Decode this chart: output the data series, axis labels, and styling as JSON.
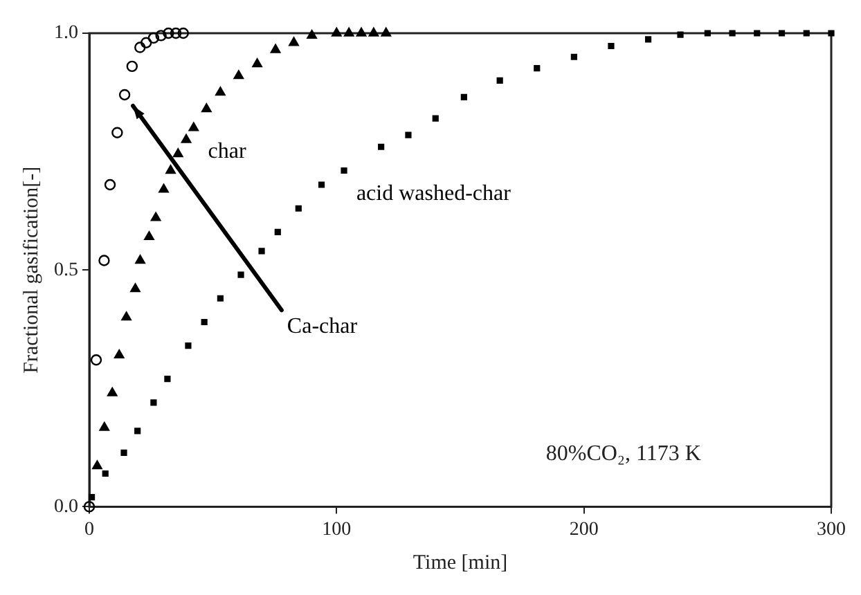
{
  "chart_data": {
    "type": "scatter",
    "xlabel": "Time [min]",
    "ylabel": "Fractional gasification[-]",
    "xlim": [
      0,
      300
    ],
    "xticks": [
      0,
      100,
      200,
      300
    ],
    "ylim": [
      0,
      1
    ],
    "yticks": [
      {
        "value": 0,
        "label": "0.0"
      },
      {
        "value": 0.5,
        "label": "0.5"
      },
      {
        "value": 1,
        "label": "1.0"
      }
    ],
    "grid": false,
    "legend": false,
    "annotations": [
      "80%CO₂, 1173 K"
    ],
    "series": [
      {
        "name": "Ca-char",
        "color": "#000000",
        "marker": "circle",
        "x": [
          0,
          2.8,
          6,
          8.4,
          11.3,
          14.3,
          17.3,
          20.5,
          23,
          26,
          29,
          32,
          35,
          38
        ],
        "values": [
          0,
          0.31,
          0.52,
          0.68,
          0.79,
          0.87,
          0.93,
          0.97,
          0.98,
          0.99,
          0.995,
          1,
          1,
          1
        ]
      },
      {
        "name": "char",
        "color": "#000000",
        "marker": "triangle",
        "x": [
          3.2,
          6.1,
          9.3,
          12.1,
          15,
          18.6,
          20.6,
          24.2,
          26.9,
          30.1,
          32.9,
          35.9,
          39.2,
          42.2,
          47.4,
          53,
          60.4,
          67.9,
          75.3,
          82.7,
          90,
          100,
          105,
          110,
          115,
          120
        ],
        "values": [
          0.086,
          0.167,
          0.24,
          0.32,
          0.4,
          0.46,
          0.52,
          0.57,
          0.61,
          0.67,
          0.71,
          0.745,
          0.775,
          0.8,
          0.84,
          0.875,
          0.91,
          0.935,
          0.965,
          0.98,
          0.995,
          1,
          1,
          1,
          1,
          1
        ]
      },
      {
        "name": "acid washed-char",
        "color": "#000000",
        "marker": "square",
        "x": [
          1,
          6.5,
          14,
          19.5,
          26,
          31.6,
          40,
          46.5,
          53,
          61.3,
          69.7,
          76.2,
          84.6,
          93.9,
          103,
          118,
          129,
          140,
          151.5,
          166,
          181,
          196,
          211,
          226,
          239,
          250,
          260,
          270,
          280,
          290,
          300
        ],
        "values": [
          0.02,
          0.07,
          0.114,
          0.16,
          0.22,
          0.27,
          0.34,
          0.39,
          0.44,
          0.49,
          0.54,
          0.58,
          0.63,
          0.68,
          0.71,
          0.76,
          0.785,
          0.82,
          0.865,
          0.9,
          0.926,
          0.95,
          0.973,
          0.987,
          0.997,
          1,
          1,
          1,
          1,
          1,
          1
        ]
      }
    ]
  }
}
